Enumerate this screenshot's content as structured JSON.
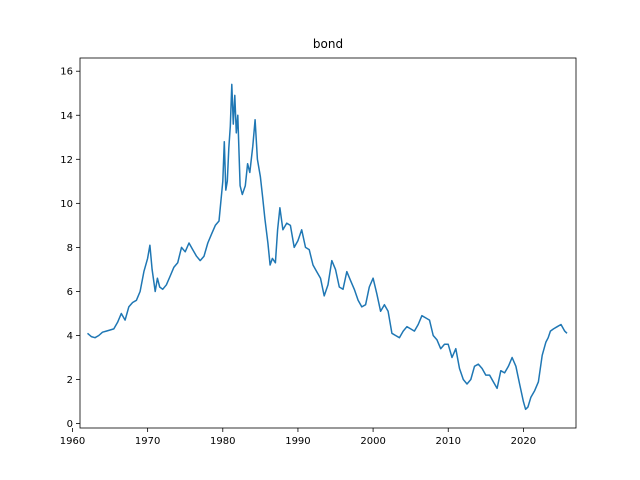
{
  "chart_data": {
    "type": "line",
    "title": "bond",
    "xlabel": "",
    "ylabel": "",
    "xlim": [
      1961,
      2027
    ],
    "ylim": [
      -0.2,
      16.6
    ],
    "xticks": [
      1960,
      1970,
      1980,
      1990,
      2000,
      2010,
      2020
    ],
    "yticks": [
      0,
      2,
      4,
      6,
      8,
      10,
      12,
      14,
      16
    ],
    "grid": false,
    "legend": "none",
    "series": [
      {
        "color": "#1f77b4",
        "x": [
          1962.0,
          1962.5,
          1963.0,
          1963.5,
          1964.0,
          1964.5,
          1965.0,
          1965.5,
          1966.0,
          1966.5,
          1967.0,
          1967.5,
          1968.0,
          1968.5,
          1969.0,
          1969.5,
          1970.0,
          1970.3,
          1970.6,
          1971.0,
          1971.3,
          1971.6,
          1972.0,
          1972.5,
          1973.0,
          1973.5,
          1974.0,
          1974.5,
          1975.0,
          1975.5,
          1976.0,
          1976.5,
          1977.0,
          1977.5,
          1978.0,
          1978.5,
          1979.0,
          1979.5,
          1980.0,
          1980.2,
          1980.4,
          1980.6,
          1980.8,
          1981.0,
          1981.2,
          1981.4,
          1981.6,
          1981.8,
          1982.0,
          1982.3,
          1982.6,
          1983.0,
          1983.3,
          1983.6,
          1984.0,
          1984.3,
          1984.6,
          1985.0,
          1985.3,
          1985.6,
          1986.0,
          1986.3,
          1986.6,
          1987.0,
          1987.3,
          1987.6,
          1988.0,
          1988.5,
          1989.0,
          1989.5,
          1990.0,
          1990.5,
          1991.0,
          1991.5,
          1992.0,
          1992.5,
          1993.0,
          1993.5,
          1994.0,
          1994.5,
          1995.0,
          1995.5,
          1996.0,
          1996.5,
          1997.0,
          1997.5,
          1998.0,
          1998.5,
          1999.0,
          1999.5,
          2000.0,
          2000.5,
          2001.0,
          2001.5,
          2002.0,
          2002.5,
          2003.0,
          2003.5,
          2004.0,
          2004.5,
          2005.0,
          2005.5,
          2006.0,
          2006.5,
          2007.0,
          2007.5,
          2008.0,
          2008.5,
          2009.0,
          2009.5,
          2010.0,
          2010.5,
          2011.0,
          2011.5,
          2012.0,
          2012.5,
          2013.0,
          2013.5,
          2014.0,
          2014.5,
          2015.0,
          2015.5,
          2016.0,
          2016.5,
          2017.0,
          2017.5,
          2018.0,
          2018.5,
          2019.0,
          2019.5,
          2020.0,
          2020.3,
          2020.6,
          2021.0,
          2021.5,
          2022.0,
          2022.5,
          2023.0,
          2023.3,
          2023.6,
          2024.0,
          2024.5,
          2025.0,
          2025.5,
          2025.8
        ],
        "y": [
          4.1,
          3.95,
          3.9,
          4.0,
          4.15,
          4.2,
          4.25,
          4.3,
          4.6,
          5.0,
          4.7,
          5.3,
          5.5,
          5.6,
          6.0,
          6.9,
          7.5,
          8.1,
          7.0,
          6.0,
          6.6,
          6.2,
          6.1,
          6.3,
          6.7,
          7.1,
          7.3,
          8.0,
          7.8,
          8.2,
          7.9,
          7.6,
          7.4,
          7.6,
          8.2,
          8.6,
          9.0,
          9.2,
          11.0,
          12.8,
          10.6,
          11.0,
          12.5,
          13.5,
          15.4,
          13.6,
          14.9,
          13.2,
          14.0,
          10.8,
          10.4,
          10.8,
          11.8,
          11.4,
          12.6,
          13.8,
          12.0,
          11.2,
          10.3,
          9.3,
          8.2,
          7.2,
          7.5,
          7.3,
          8.8,
          9.8,
          8.8,
          9.1,
          9.0,
          8.0,
          8.3,
          8.8,
          8.0,
          7.9,
          7.2,
          6.9,
          6.6,
          5.8,
          6.3,
          7.4,
          7.0,
          6.2,
          6.1,
          6.9,
          6.5,
          6.1,
          5.6,
          5.3,
          5.4,
          6.2,
          6.6,
          5.9,
          5.1,
          5.4,
          5.1,
          4.1,
          4.0,
          3.9,
          4.2,
          4.4,
          4.3,
          4.2,
          4.5,
          4.9,
          4.8,
          4.7,
          4.0,
          3.8,
          3.4,
          3.6,
          3.6,
          3.0,
          3.4,
          2.5,
          2.0,
          1.8,
          2.0,
          2.6,
          2.7,
          2.5,
          2.2,
          2.2,
          1.9,
          1.6,
          2.4,
          2.3,
          2.6,
          3.0,
          2.6,
          1.8,
          1.0,
          0.65,
          0.75,
          1.2,
          1.5,
          1.9,
          3.1,
          3.7,
          3.9,
          4.2,
          4.3,
          4.4,
          4.5,
          4.2,
          4.1
        ]
      }
    ]
  }
}
